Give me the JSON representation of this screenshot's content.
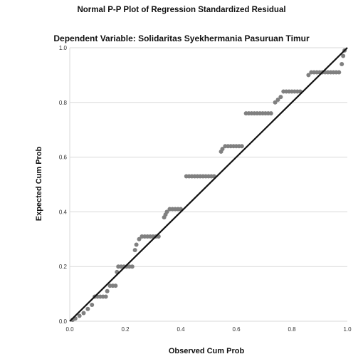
{
  "chart_data": {
    "type": "scatter",
    "title": "Normal P-P Plot of Regression Standardized Residual",
    "subtitle": "Dependent Variable: Solidaritas Syekhermania Pasuruan Timur",
    "xlabel": "Observed Cum Prob",
    "ylabel": "Expected Cum Prob",
    "xlim": [
      0.0,
      1.0
    ],
    "ylim": [
      0.0,
      1.0
    ],
    "x_ticks": [
      "0.0",
      "0.2",
      "0.4",
      "0.6",
      "0.8",
      "1.0"
    ],
    "y_ticks": [
      "0.0",
      "0.2",
      "0.4",
      "0.6",
      "0.8",
      "1.0"
    ],
    "grid": "horizontal",
    "reference_line": {
      "from": [
        0,
        0
      ],
      "to": [
        1,
        1
      ],
      "color": "#111111"
    },
    "point_color": "#808080",
    "series": [
      {
        "values": [
          {
            "x": 0.01,
            "y": 0.005
          },
          {
            "x": 0.02,
            "y": 0.01
          },
          {
            "x": 0.035,
            "y": 0.02
          },
          {
            "x": 0.05,
            "y": 0.03
          },
          {
            "x": 0.065,
            "y": 0.045
          },
          {
            "x": 0.08,
            "y": 0.06
          },
          {
            "x": 0.09,
            "y": 0.09
          },
          {
            "x": 0.1,
            "y": 0.09
          },
          {
            "x": 0.11,
            "y": 0.09
          },
          {
            "x": 0.12,
            "y": 0.09
          },
          {
            "x": 0.13,
            "y": 0.09
          },
          {
            "x": 0.135,
            "y": 0.11
          },
          {
            "x": 0.145,
            "y": 0.13
          },
          {
            "x": 0.155,
            "y": 0.13
          },
          {
            "x": 0.165,
            "y": 0.13
          },
          {
            "x": 0.17,
            "y": 0.18
          },
          {
            "x": 0.175,
            "y": 0.2
          },
          {
            "x": 0.185,
            "y": 0.2
          },
          {
            "x": 0.195,
            "y": 0.2
          },
          {
            "x": 0.205,
            "y": 0.2
          },
          {
            "x": 0.215,
            "y": 0.2
          },
          {
            "x": 0.225,
            "y": 0.2
          },
          {
            "x": 0.235,
            "y": 0.26
          },
          {
            "x": 0.24,
            "y": 0.28
          },
          {
            "x": 0.25,
            "y": 0.3
          },
          {
            "x": 0.26,
            "y": 0.31
          },
          {
            "x": 0.27,
            "y": 0.31
          },
          {
            "x": 0.28,
            "y": 0.31
          },
          {
            "x": 0.29,
            "y": 0.31
          },
          {
            "x": 0.3,
            "y": 0.31
          },
          {
            "x": 0.31,
            "y": 0.31
          },
          {
            "x": 0.32,
            "y": 0.31
          },
          {
            "x": 0.34,
            "y": 0.38
          },
          {
            "x": 0.345,
            "y": 0.39
          },
          {
            "x": 0.35,
            "y": 0.4
          },
          {
            "x": 0.36,
            "y": 0.41
          },
          {
            "x": 0.37,
            "y": 0.41
          },
          {
            "x": 0.38,
            "y": 0.41
          },
          {
            "x": 0.39,
            "y": 0.41
          },
          {
            "x": 0.4,
            "y": 0.41
          },
          {
            "x": 0.42,
            "y": 0.53
          },
          {
            "x": 0.43,
            "y": 0.53
          },
          {
            "x": 0.44,
            "y": 0.53
          },
          {
            "x": 0.45,
            "y": 0.53
          },
          {
            "x": 0.46,
            "y": 0.53
          },
          {
            "x": 0.47,
            "y": 0.53
          },
          {
            "x": 0.48,
            "y": 0.53
          },
          {
            "x": 0.49,
            "y": 0.53
          },
          {
            "x": 0.5,
            "y": 0.53
          },
          {
            "x": 0.51,
            "y": 0.53
          },
          {
            "x": 0.52,
            "y": 0.53
          },
          {
            "x": 0.545,
            "y": 0.62
          },
          {
            "x": 0.55,
            "y": 0.63
          },
          {
            "x": 0.56,
            "y": 0.64
          },
          {
            "x": 0.57,
            "y": 0.64
          },
          {
            "x": 0.58,
            "y": 0.64
          },
          {
            "x": 0.59,
            "y": 0.64
          },
          {
            "x": 0.6,
            "y": 0.64
          },
          {
            "x": 0.61,
            "y": 0.64
          },
          {
            "x": 0.62,
            "y": 0.64
          },
          {
            "x": 0.635,
            "y": 0.76
          },
          {
            "x": 0.645,
            "y": 0.76
          },
          {
            "x": 0.655,
            "y": 0.76
          },
          {
            "x": 0.665,
            "y": 0.76
          },
          {
            "x": 0.675,
            "y": 0.76
          },
          {
            "x": 0.685,
            "y": 0.76
          },
          {
            "x": 0.695,
            "y": 0.76
          },
          {
            "x": 0.705,
            "y": 0.76
          },
          {
            "x": 0.715,
            "y": 0.76
          },
          {
            "x": 0.725,
            "y": 0.76
          },
          {
            "x": 0.74,
            "y": 0.8
          },
          {
            "x": 0.75,
            "y": 0.81
          },
          {
            "x": 0.76,
            "y": 0.82
          },
          {
            "x": 0.77,
            "y": 0.84
          },
          {
            "x": 0.78,
            "y": 0.84
          },
          {
            "x": 0.79,
            "y": 0.84
          },
          {
            "x": 0.8,
            "y": 0.84
          },
          {
            "x": 0.81,
            "y": 0.84
          },
          {
            "x": 0.82,
            "y": 0.84
          },
          {
            "x": 0.83,
            "y": 0.84
          },
          {
            "x": 0.86,
            "y": 0.9
          },
          {
            "x": 0.87,
            "y": 0.91
          },
          {
            "x": 0.88,
            "y": 0.91
          },
          {
            "x": 0.89,
            "y": 0.91
          },
          {
            "x": 0.9,
            "y": 0.91
          },
          {
            "x": 0.91,
            "y": 0.91
          },
          {
            "x": 0.92,
            "y": 0.91
          },
          {
            "x": 0.93,
            "y": 0.91
          },
          {
            "x": 0.94,
            "y": 0.91
          },
          {
            "x": 0.95,
            "y": 0.91
          },
          {
            "x": 0.96,
            "y": 0.91
          },
          {
            "x": 0.97,
            "y": 0.91
          },
          {
            "x": 0.98,
            "y": 0.94
          },
          {
            "x": 0.985,
            "y": 0.97
          },
          {
            "x": 0.99,
            "y": 0.99
          }
        ]
      }
    ]
  }
}
